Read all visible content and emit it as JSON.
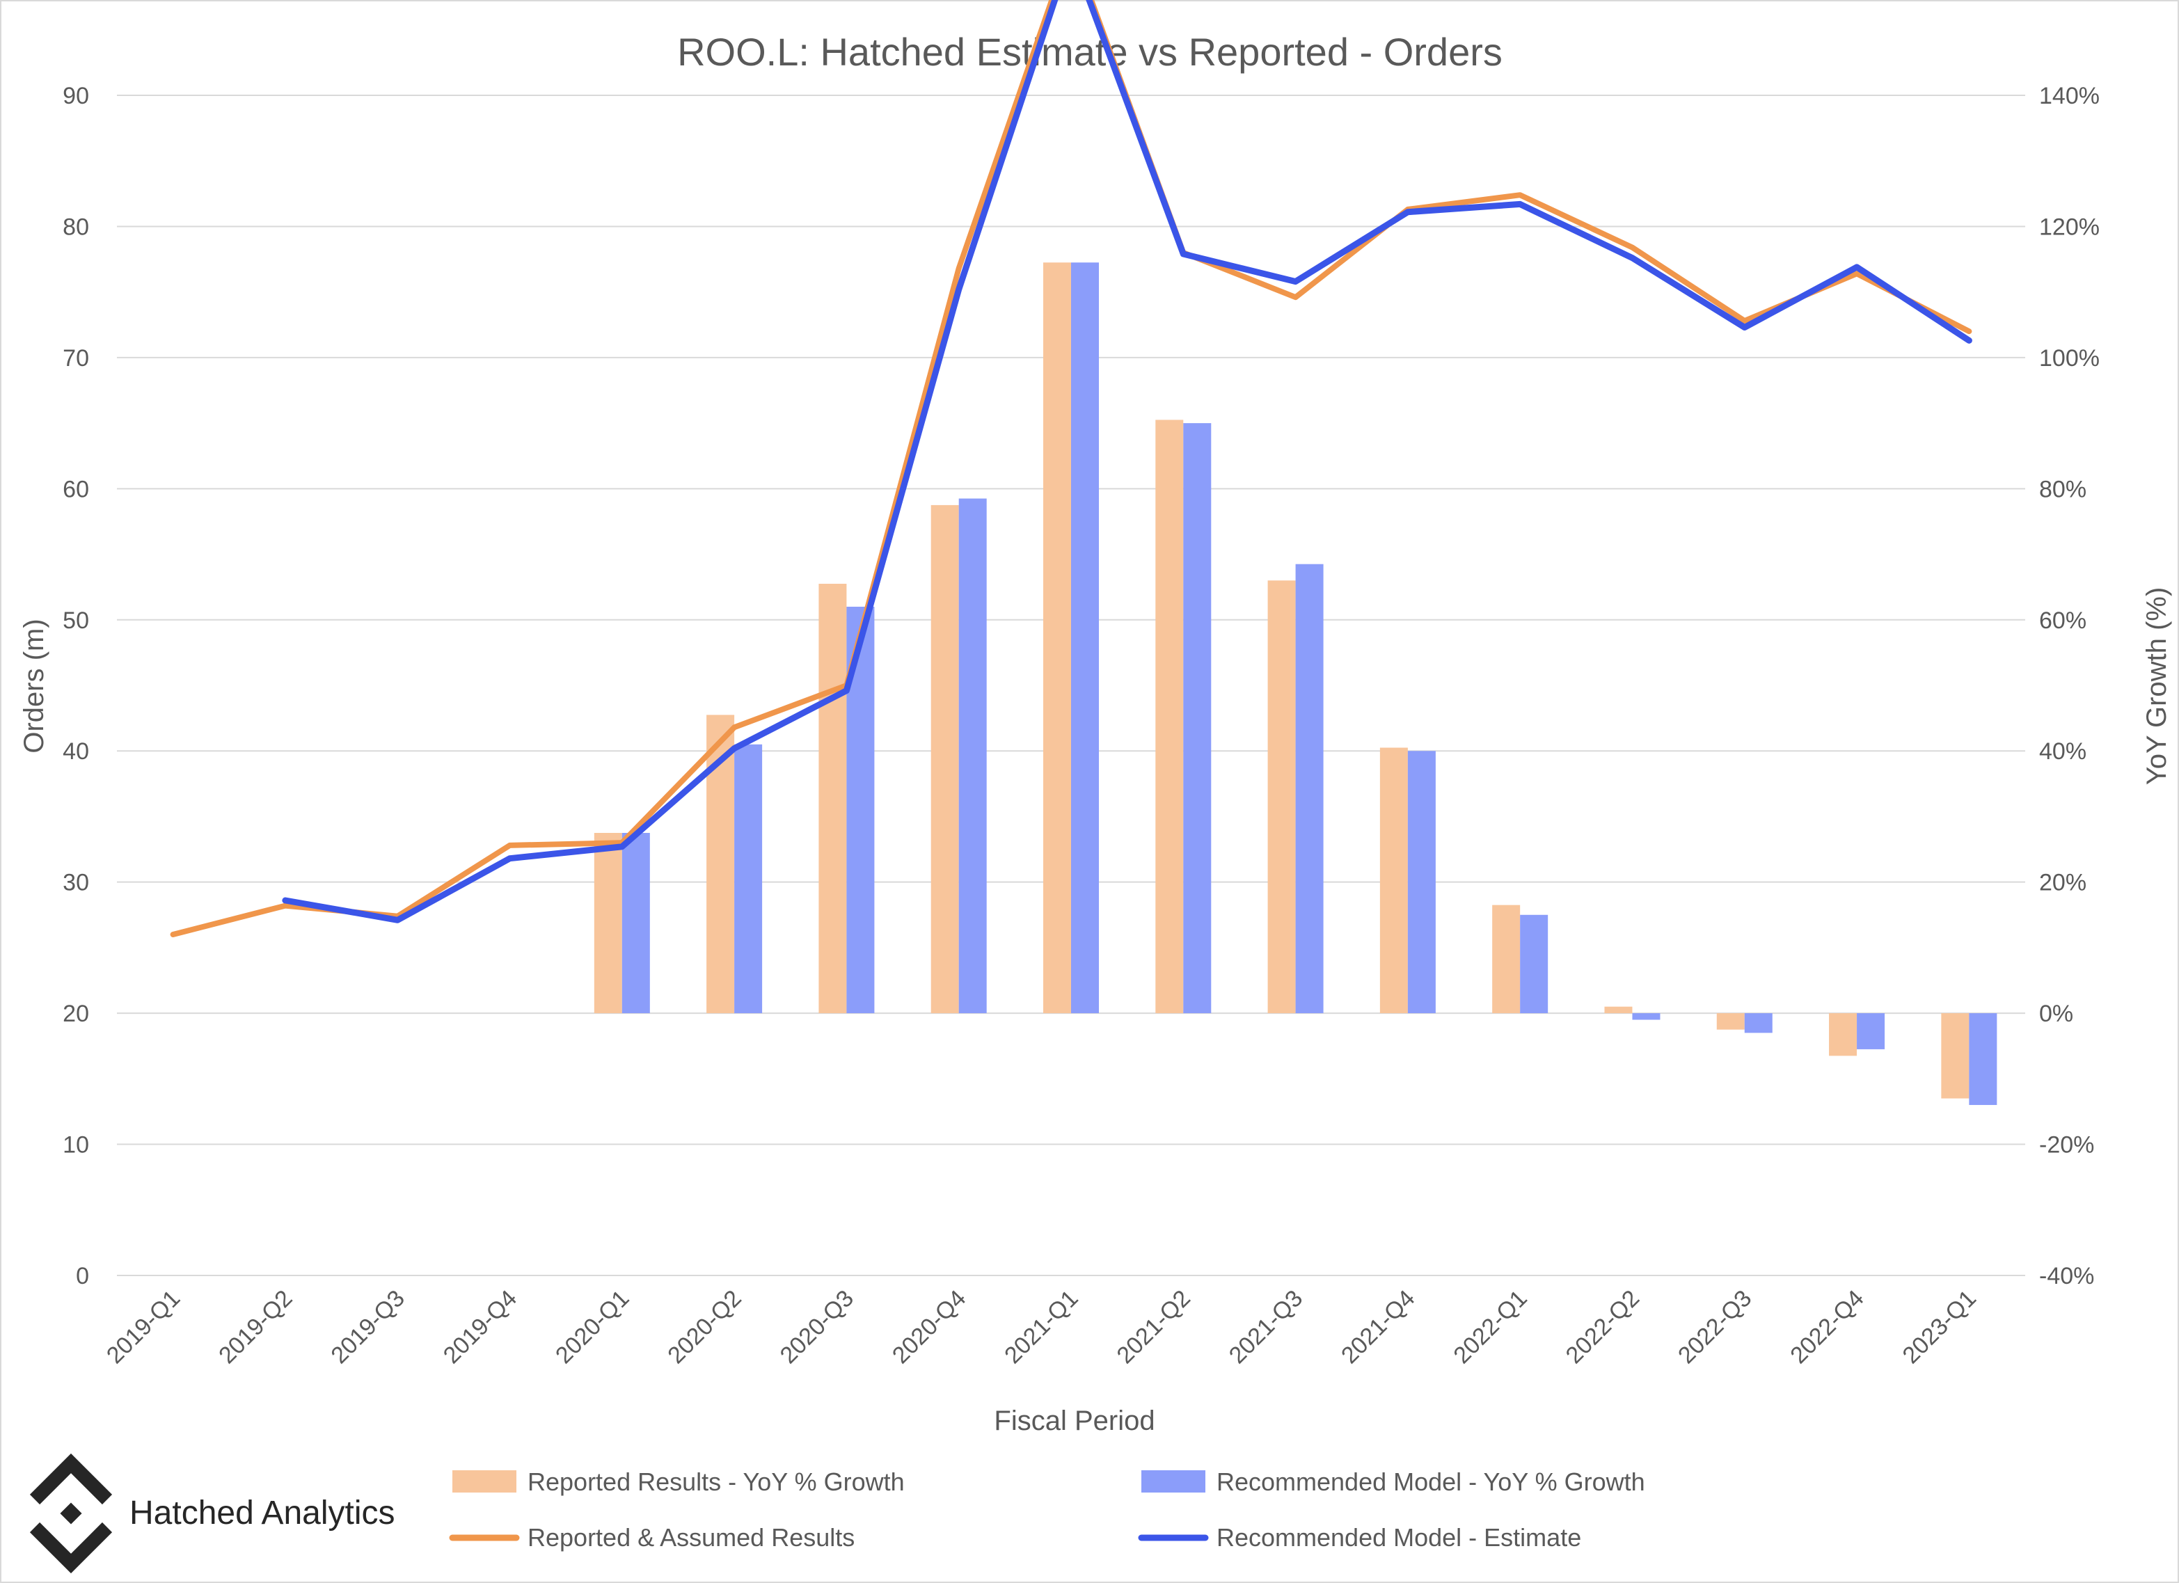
{
  "brand": {
    "name": "Hatched Analytics",
    "logo_icon": "hatched-diamond-logo"
  },
  "chart_data": {
    "type": "bar",
    "title": "ROO.L: Hatched Estimate vs Reported - Orders",
    "xlabel": "Fiscal Period",
    "ylabel_left": "Orders  (m)",
    "ylabel_right": "YoY Growth (%)",
    "ylim_left": [
      0,
      90
    ],
    "ylim_right": [
      -40,
      140
    ],
    "left_ticks": [
      "0",
      "10",
      "20",
      "30",
      "40",
      "50",
      "60",
      "70",
      "80",
      "90"
    ],
    "right_ticks": [
      "-40%",
      "-20%",
      "0%",
      "20%",
      "40%",
      "60%",
      "80%",
      "100%",
      "120%",
      "140%"
    ],
    "grid": true,
    "legend_position": "bottom",
    "categories": [
      "2019-Q1",
      "2019-Q2",
      "2019-Q3",
      "2019-Q4",
      "2020-Q1",
      "2020-Q2",
      "2020-Q3",
      "2020-Q4",
      "2021-Q1",
      "2021-Q2",
      "2021-Q3",
      "2021-Q4",
      "2022-Q1",
      "2022-Q2",
      "2022-Q3",
      "2022-Q4",
      "2023-Q1"
    ],
    "series": [
      {
        "name": "Reported Results - YoY % Growth",
        "kind": "bar",
        "axis": "right",
        "color": "#f8c59b",
        "values": [
          null,
          null,
          null,
          null,
          27.5,
          45.5,
          65.5,
          77.5,
          114.5,
          90.5,
          66,
          40.5,
          16.5,
          1,
          -2.5,
          -6.5,
          -13
        ]
      },
      {
        "name": "Recommended Model - YoY % Growth",
        "kind": "bar",
        "axis": "right",
        "color": "#8b9dfa",
        "values": [
          null,
          null,
          null,
          null,
          27.5,
          41,
          62,
          78.5,
          114.5,
          90,
          68.5,
          40,
          15,
          -1,
          -3,
          -5.5,
          -14
        ]
      },
      {
        "name": "Reported & Assumed Results",
        "kind": "line",
        "axis": "left",
        "color": "#f0964b",
        "values": [
          26,
          28.2,
          27.4,
          32.8,
          33,
          41.8,
          45,
          76.8,
          101.5,
          78,
          74.6,
          81.3,
          82.4,
          78.4,
          72.8,
          76.4,
          72
        ]
      },
      {
        "name": "Recommended Model - Estimate",
        "kind": "line",
        "axis": "left",
        "color": "#3b55e8",
        "values": [
          null,
          28.6,
          27.1,
          31.8,
          32.7,
          40.2,
          44.6,
          75.2,
          101,
          77.9,
          75.8,
          81.1,
          81.7,
          77.6,
          72.3,
          76.9,
          71.3
        ]
      }
    ]
  }
}
